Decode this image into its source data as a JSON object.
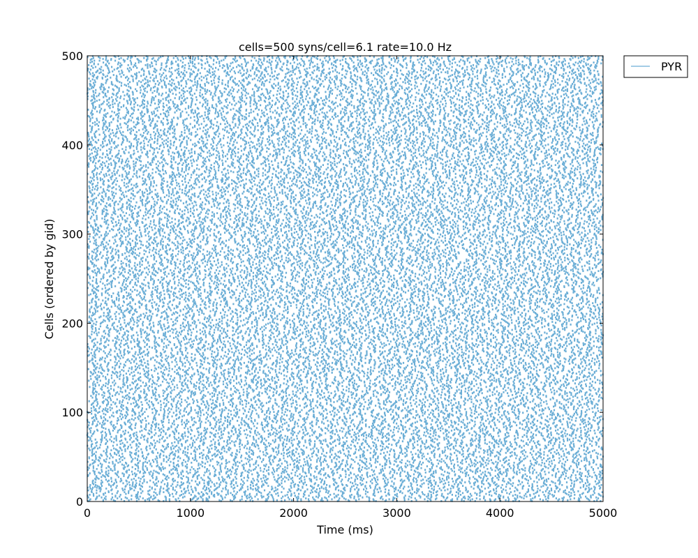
{
  "chart_data": {
    "type": "scatter",
    "title": "cells=500 syns/cell=6.1 rate=10.0 Hz",
    "xlabel": "Time (ms)",
    "ylabel": "Cells (ordered by gid)",
    "xlim": [
      0,
      5000
    ],
    "ylim": [
      0,
      500
    ],
    "xticks": [
      0,
      1000,
      2000,
      3000,
      4000,
      5000
    ],
    "yticks": [
      0,
      100,
      200,
      300,
      400,
      500
    ],
    "grid": false,
    "legend": {
      "placement": "outside-top-right",
      "entries": [
        "PYR"
      ]
    },
    "series": [
      {
        "name": "PYR",
        "color": "#6baed6",
        "marker": "dot",
        "cells": 500,
        "mean_rate_hz": 10.0,
        "duration_ms": 5000
      }
    ]
  }
}
